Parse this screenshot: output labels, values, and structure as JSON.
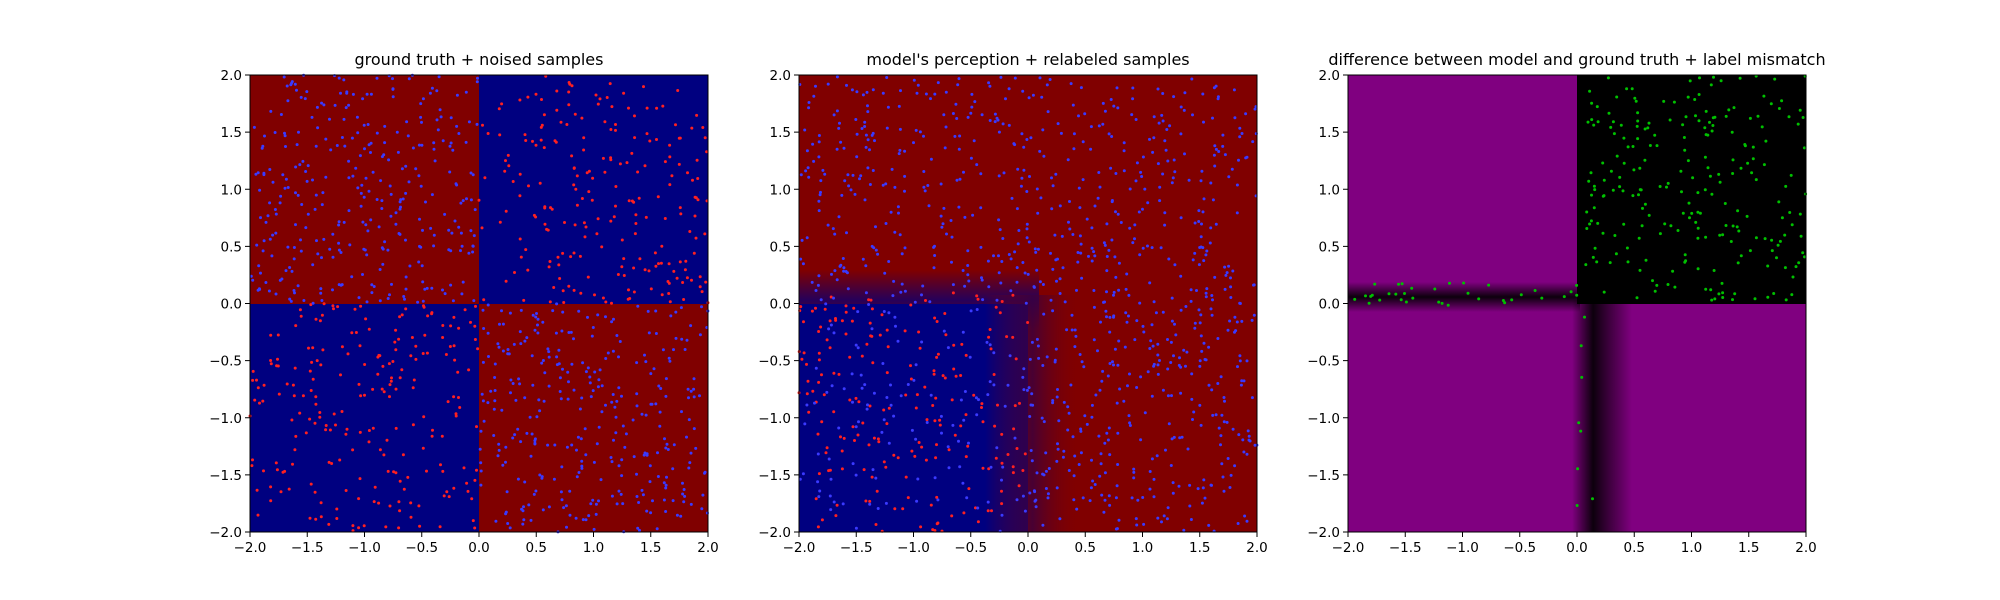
{
  "chart_data": [
    {
      "type": "heatmap",
      "title": "ground truth + noised samples",
      "xlabel": "",
      "ylabel": "",
      "xlim": [
        -2.0,
        2.0
      ],
      "ylim": [
        -2.0,
        2.0
      ],
      "grid": false,
      "x_ticks": [
        "−2.0",
        "−1.5",
        "−1.0",
        "−0.5",
        "0.0",
        "0.5",
        "1.0",
        "1.5",
        "2.0"
      ],
      "y_ticks": [
        "−2.0",
        "−1.5",
        "−1.0",
        "−0.5",
        "0.0",
        "0.5",
        "1.0",
        "1.5",
        "2.0"
      ],
      "background": {
        "description_values": "quadrant labels: x*y<0 -> red, x*y>0 -> blue",
        "regions": [
          {
            "x_range": [
              -2,
              0
            ],
            "y_range": [
              0,
              2
            ],
            "color": "#800000"
          },
          {
            "x_range": [
              0,
              2
            ],
            "y_range": [
              0,
              2
            ],
            "color": "#000080"
          },
          {
            "x_range": [
              -2,
              0
            ],
            "y_range": [
              -2,
              0
            ],
            "color": "#000080"
          },
          {
            "x_range": [
              0,
              2
            ],
            "y_range": [
              -2,
              0
            ],
            "color": "#800000"
          }
        ]
      },
      "series": [
        {
          "color": "#ff2020",
          "marker": "point",
          "regions": [
            {
              "x_range": [
                0,
                2
              ],
              "y_range": [
                0,
                2
              ],
              "count": 220
            },
            {
              "x_range": [
                -2,
                0
              ],
              "y_range": [
                -2,
                0
              ],
              "count": 220
            }
          ]
        },
        {
          "color": "#3a3aff",
          "marker": "point",
          "regions": [
            {
              "x_range": [
                -2,
                0
              ],
              "y_range": [
                0,
                2
              ],
              "count": 320
            },
            {
              "x_range": [
                0,
                2
              ],
              "y_range": [
                -2,
                0
              ],
              "count": 320
            }
          ]
        }
      ]
    },
    {
      "type": "heatmap",
      "title": "model's perception + relabeled samples",
      "xlabel": "",
      "ylabel": "",
      "xlim": [
        -2.0,
        2.0
      ],
      "ylim": [
        -2.0,
        2.0
      ],
      "grid": false,
      "x_ticks": [
        "−2.0",
        "−1.5",
        "−1.0",
        "−0.5",
        "0.0",
        "0.5",
        "1.0",
        "1.5",
        "2.0"
      ],
      "y_ticks": [
        "−2.0",
        "−1.5",
        "−1.0",
        "−0.5",
        "0.0",
        "0.5",
        "1.0",
        "1.5",
        "2.0"
      ],
      "background": {
        "regions": [
          {
            "x_range": [
              -2,
              2
            ],
            "y_range": [
              0,
              2
            ],
            "color": "#800000"
          },
          {
            "x_range": [
              0,
              2
            ],
            "y_range": [
              -2,
              0
            ],
            "color": "#800000"
          },
          {
            "x_range": [
              -2,
              0
            ],
            "y_range": [
              -2,
              0
            ],
            "color": "#000080"
          }
        ],
        "blur_boundaries": [
          {
            "axis": "y",
            "at": 0.0,
            "x_range": [
              -2,
              0.1
            ]
          },
          {
            "axis": "x",
            "at": 0.0,
            "y_range": [
              -2,
              0.1
            ]
          }
        ]
      },
      "series": [
        {
          "color": "#ff2020",
          "marker": "point",
          "regions": [
            {
              "x_range": [
                -2,
                0
              ],
              "y_range": [
                -2,
                0.1
              ],
              "count": 200
            }
          ]
        },
        {
          "color": "#3a3aff",
          "marker": "point",
          "regions": [
            {
              "x_range": [
                -2,
                2
              ],
              "y_range": [
                0,
                2
              ],
              "count": 520
            },
            {
              "x_range": [
                0,
                2
              ],
              "y_range": [
                -2,
                0
              ],
              "count": 300
            },
            {
              "x_range": [
                -2,
                0
              ],
              "y_range": [
                -2,
                0
              ],
              "count": 120
            }
          ]
        }
      ]
    },
    {
      "type": "heatmap",
      "title": "difference between model and ground truth + label mismatch",
      "xlabel": "",
      "ylabel": "",
      "xlim": [
        -2.0,
        2.0
      ],
      "ylim": [
        -2.0,
        2.0
      ],
      "grid": false,
      "x_ticks": [
        "−2.0",
        "−1.5",
        "−1.0",
        "−0.5",
        "0.0",
        "0.5",
        "1.0",
        "1.5",
        "2.0"
      ],
      "y_ticks": [
        "−2.0",
        "−1.5",
        "−1.0",
        "−0.5",
        "0.0",
        "0.5",
        "1.0",
        "1.5",
        "2.0"
      ],
      "background": {
        "regions": [
          {
            "x_range": [
              -2,
              0
            ],
            "y_range": [
              0,
              2
            ],
            "color": "#800080"
          },
          {
            "x_range": [
              0,
              2
            ],
            "y_range": [
              0,
              2
            ],
            "color": "#000000"
          },
          {
            "x_range": [
              -2,
              2
            ],
            "y_range": [
              -2,
              0
            ],
            "color": "#800080"
          }
        ],
        "dark_boundaries": [
          {
            "axis": "y",
            "at": 0.0,
            "x_range": [
              -2,
              0.1
            ]
          },
          {
            "axis": "x",
            "at": 0.0,
            "y_range": [
              -2,
              0.1
            ]
          }
        ]
      },
      "series": [
        {
          "color": "#00c000",
          "marker": "point",
          "regions": [
            {
              "x_range": [
                0,
                2
              ],
              "y_range": [
                0,
                2
              ],
              "count": 230
            },
            {
              "x_range": [
                -2,
                0
              ],
              "y_range": [
                -0.02,
                0.18
              ],
              "count": 35
            },
            {
              "x_range": [
                0,
                0.15
              ],
              "y_range": [
                -1.8,
                0
              ],
              "count": 8
            }
          ]
        }
      ]
    }
  ]
}
